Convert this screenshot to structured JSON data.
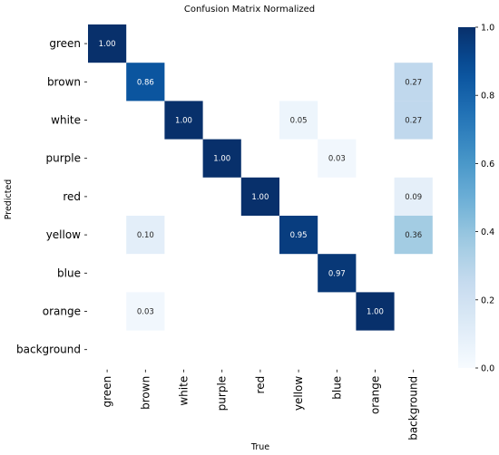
{
  "chart_data": {
    "type": "heatmap",
    "title": "Confusion Matrix Normalized",
    "xlabel": "True",
    "ylabel": "Predicted",
    "x_categories": [
      "green",
      "brown",
      "white",
      "purple",
      "red",
      "yellow",
      "blue",
      "orange",
      "background"
    ],
    "y_categories": [
      "green",
      "brown",
      "white",
      "purple",
      "red",
      "yellow",
      "blue",
      "orange",
      "background"
    ],
    "values": [
      [
        1.0,
        null,
        null,
        null,
        null,
        null,
        null,
        null,
        null
      ],
      [
        null,
        0.86,
        null,
        null,
        null,
        null,
        null,
        null,
        0.27
      ],
      [
        null,
        null,
        1.0,
        null,
        null,
        0.05,
        null,
        null,
        0.27
      ],
      [
        null,
        null,
        null,
        1.0,
        null,
        null,
        0.03,
        null,
        null
      ],
      [
        null,
        null,
        null,
        null,
        1.0,
        null,
        null,
        null,
        0.09
      ],
      [
        null,
        0.1,
        null,
        null,
        null,
        0.95,
        null,
        null,
        0.36
      ],
      [
        null,
        null,
        null,
        null,
        null,
        null,
        0.97,
        null,
        null
      ],
      [
        null,
        0.03,
        null,
        null,
        null,
        null,
        null,
        1.0,
        null
      ],
      [
        null,
        null,
        null,
        null,
        null,
        null,
        null,
        null,
        null
      ]
    ],
    "value_labels": [
      [
        "1.00",
        "",
        "",
        "",
        "",
        "",
        "",
        "",
        ""
      ],
      [
        "",
        "0.86",
        "",
        "",
        "",
        "",
        "",
        "",
        "0.27"
      ],
      [
        "",
        "",
        "1.00",
        "",
        "",
        "0.05",
        "",
        "",
        "0.27"
      ],
      [
        "",
        "",
        "",
        "1.00",
        "",
        "",
        "0.03",
        "",
        ""
      ],
      [
        "",
        "",
        "",
        "",
        "1.00",
        "",
        "",
        "",
        "0.09"
      ],
      [
        "",
        "0.10",
        "",
        "",
        "",
        "0.95",
        "",
        "",
        "0.36"
      ],
      [
        "",
        "",
        "",
        "",
        "",
        "",
        "0.97",
        "",
        ""
      ],
      [
        "",
        "0.03",
        "",
        "",
        "",
        "",
        "",
        "1.00",
        ""
      ],
      [
        "",
        "",
        "",
        "",
        "",
        "",
        "",
        "",
        ""
      ]
    ],
    "colorbar": {
      "range": [
        0.0,
        1.0
      ],
      "ticks": [
        "0.0",
        "0.2",
        "0.4",
        "0.6",
        "0.8",
        "1.0"
      ],
      "colormap": "Blues"
    },
    "grid": false
  },
  "colors": {
    "low": "#f7fbff",
    "high": "#08306b"
  }
}
